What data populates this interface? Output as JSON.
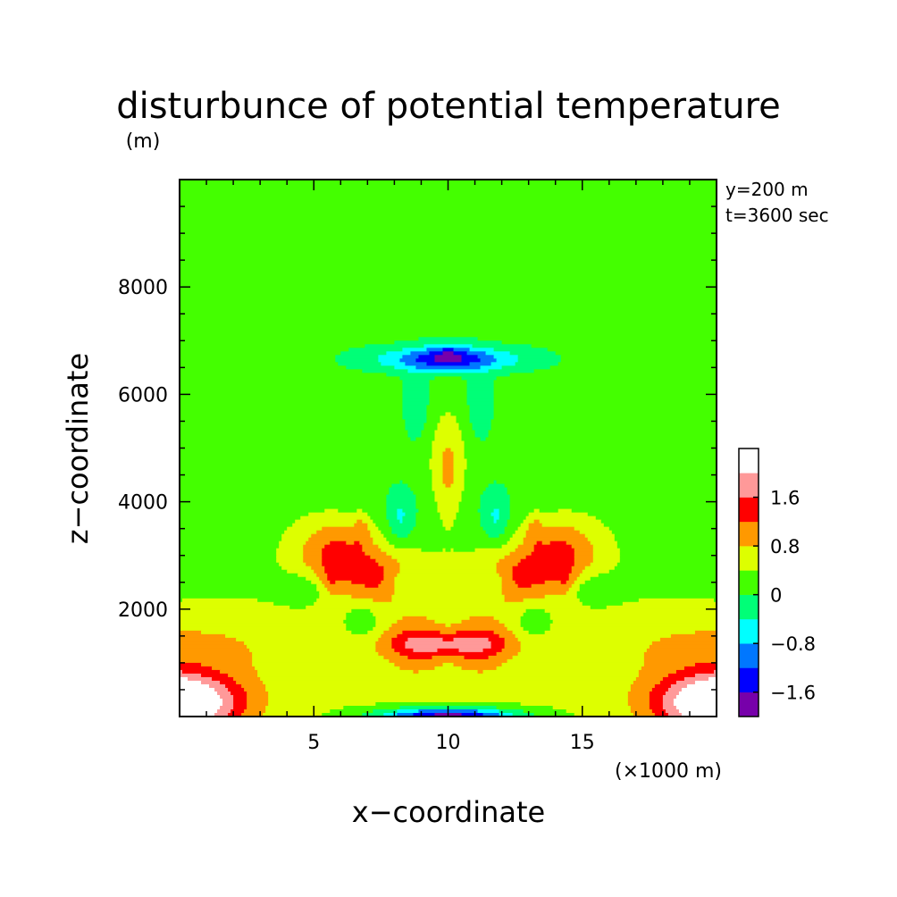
{
  "chart_data": {
    "type": "heatmap",
    "title": "disturbunce of potential temperature",
    "ylabel": "z−coordinate",
    "xlabel": "x−coordinate",
    "yunit": "(m)",
    "xunit": "(×1000 m)",
    "annotations": [
      "y=200 m",
      "t=3600 sec"
    ],
    "xlim": [
      0,
      20
    ],
    "ylim": [
      0,
      10000
    ],
    "xticks": [
      5,
      10,
      15
    ],
    "xtick_labels": [
      "5",
      "10",
      "15"
    ],
    "yticks": [
      2000,
      4000,
      6000,
      8000
    ],
    "ytick_labels": [
      "2000",
      "4000",
      "6000",
      "8000"
    ],
    "colorbar": {
      "boundaries": [
        -2.0,
        -1.6,
        -1.2,
        -0.8,
        -0.4,
        0.0,
        0.4,
        0.8,
        1.2,
        1.6,
        2.0,
        2.4
      ],
      "colors": [
        "#7700aa",
        "#0000ff",
        "#0077ff",
        "#00ffff",
        "#00ff77",
        "#44ff00",
        "#ddff00",
        "#ff9900",
        "#ff0000",
        "#ff9999",
        "#ffffff"
      ],
      "tick_values": [
        -1.6,
        -0.8,
        0,
        0.8,
        1.6
      ],
      "tick_labels": [
        "−1.6",
        "−0.8",
        "0",
        "0.8",
        "1.6"
      ]
    },
    "grid": false
  }
}
